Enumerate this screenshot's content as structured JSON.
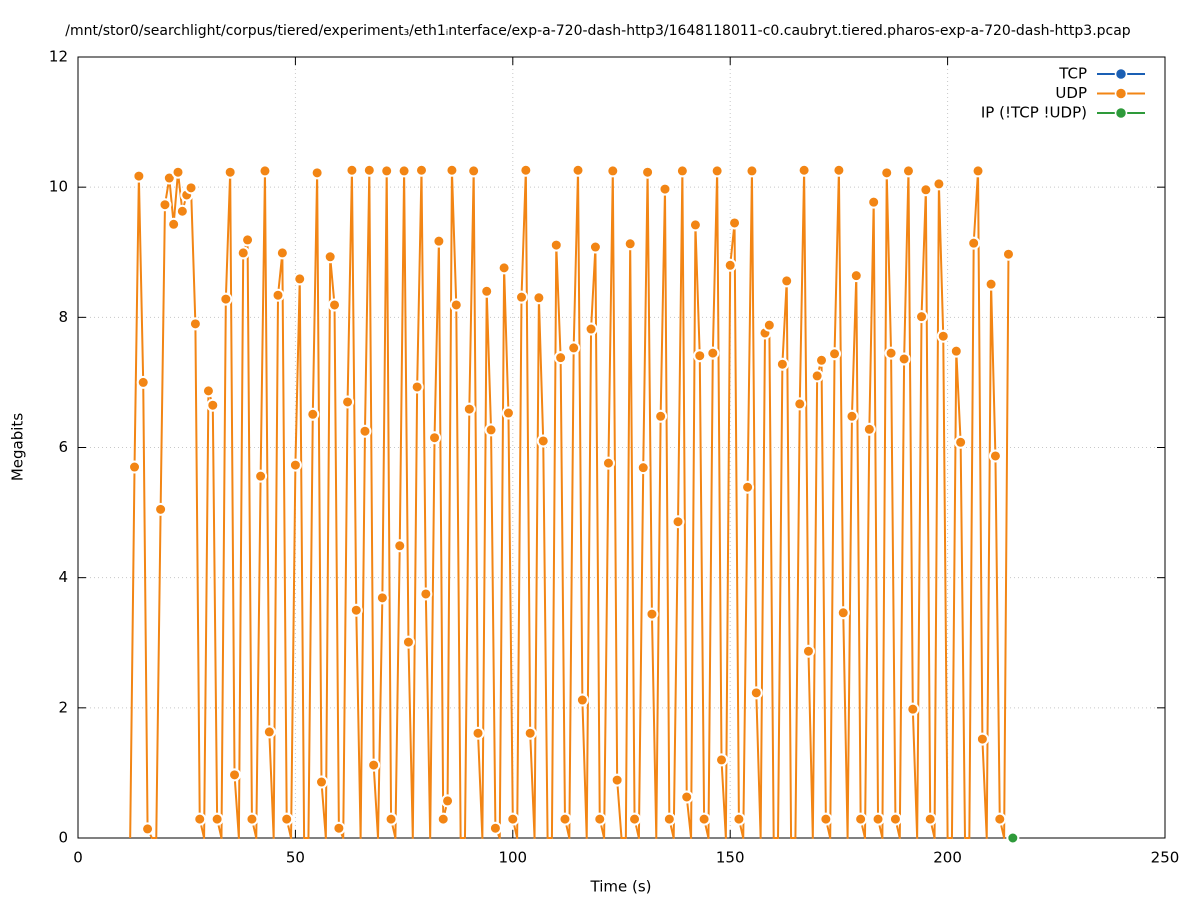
{
  "chart_data": {
    "type": "line",
    "title": "/mnt/stor0/searchlight/corpus/tiered/experiment₃/eth1ᵢnterface/exp-a-720-dash-http3/1648118011-c0.caubryt.tiered.pharos-exp-a-720-dash-http3.pcap",
    "xlabel": "Time (s)",
    "ylabel": "Megabits",
    "xlim": [
      0,
      250
    ],
    "xticks": [
      0,
      50,
      100,
      150,
      200,
      250
    ],
    "ylim": [
      0,
      12
    ],
    "yticks": [
      0,
      2,
      4,
      6,
      8,
      10,
      12
    ],
    "grid": true,
    "legend": "top-right",
    "series": [
      {
        "name": "TCP",
        "color": "#1a5fb4",
        "x": [],
        "values": []
      },
      {
        "name": "UDP",
        "color": "#f28514",
        "x": [
          12,
          13,
          14,
          15,
          16,
          17,
          18,
          19,
          20,
          21,
          22,
          23,
          24,
          25,
          26,
          27,
          28,
          29,
          30,
          31,
          32,
          33,
          34,
          35,
          36,
          37,
          38,
          39,
          40,
          41,
          42,
          43,
          44,
          45,
          46,
          47,
          48,
          49,
          50,
          51,
          52,
          53,
          54,
          55,
          56,
          57,
          58,
          59,
          60,
          61,
          62,
          63,
          64,
          65,
          66,
          67,
          68,
          69,
          70,
          71,
          72,
          73,
          74,
          75,
          76,
          77,
          78,
          79,
          80,
          81,
          82,
          83,
          84,
          85,
          86,
          87,
          88,
          89,
          90,
          91,
          92,
          93,
          94,
          95,
          96,
          97,
          98,
          99,
          100,
          101,
          102,
          103,
          104,
          105,
          106,
          107,
          108,
          109,
          110,
          111,
          112,
          113,
          114,
          115,
          116,
          117,
          118,
          119,
          120,
          121,
          122,
          123,
          124,
          125,
          126,
          127,
          128,
          129,
          130,
          131,
          132,
          133,
          134,
          135,
          136,
          137,
          138,
          139,
          140,
          141,
          142,
          143,
          144,
          145,
          146,
          147,
          148,
          149,
          150,
          151,
          152,
          153,
          154,
          155,
          156,
          157,
          158,
          159,
          160,
          161,
          162,
          163,
          164,
          165,
          166,
          167,
          168,
          169,
          170,
          171,
          172,
          173,
          174,
          175,
          176,
          177,
          178,
          179,
          180,
          181,
          182,
          183,
          184,
          185,
          186,
          187,
          188,
          189,
          190,
          191,
          192,
          193,
          194,
          195,
          196,
          197,
          198,
          199,
          200,
          201,
          202,
          203,
          204,
          205,
          206,
          207,
          208,
          209,
          210,
          211,
          212,
          213,
          214
        ],
        "values": [
          0,
          5.7,
          10.17,
          7.0,
          0.14,
          0,
          0,
          5.05,
          9.73,
          10.14,
          9.43,
          10.23,
          9.63,
          9.88,
          9.99,
          7.9,
          0.29,
          0,
          6.87,
          6.65,
          0.29,
          0,
          8.28,
          10.23,
          0.97,
          0,
          8.99,
          9.19,
          0.29,
          0,
          5.56,
          10.25,
          1.63,
          0,
          8.34,
          8.99,
          0.29,
          0,
          5.73,
          8.59,
          0,
          0,
          6.51,
          10.22,
          0.86,
          0,
          8.93,
          8.19,
          0.15,
          0,
          6.7,
          10.26,
          3.5,
          0,
          6.25,
          10.26,
          1.12,
          0,
          3.69,
          10.25,
          0.29,
          0,
          4.49,
          10.25,
          3.01,
          0,
          6.93,
          10.26,
          3.75,
          0,
          6.15,
          9.17,
          0.29,
          0.57,
          10.26,
          8.19,
          0,
          0,
          6.59,
          10.25,
          1.61,
          0,
          8.4,
          6.27,
          0.15,
          0,
          8.76,
          6.53,
          0.29,
          0,
          8.31,
          10.26,
          1.61,
          0,
          8.3,
          6.1,
          0,
          0,
          9.11,
          7.38,
          0.29,
          0,
          7.53,
          10.26,
          2.12,
          0,
          7.82,
          9.08,
          0.29,
          0,
          5.76,
          10.25,
          0.89,
          0,
          0,
          9.13,
          0.29,
          0,
          5.69,
          10.23,
          3.44,
          0,
          6.48,
          9.97,
          0.29,
          0,
          4.86,
          10.25,
          0.63,
          0,
          9.42,
          7.41,
          0.29,
          0,
          7.45,
          10.25,
          1.2,
          0,
          8.8,
          9.45,
          0.29,
          0,
          5.39,
          10.25,
          2.23,
          0,
          7.76,
          7.88,
          0,
          0,
          7.28,
          8.56,
          0,
          0,
          6.67,
          10.26,
          2.87,
          0,
          7.1,
          7.34,
          0.29,
          0,
          7.44,
          10.26,
          3.46,
          0,
          6.48,
          8.64,
          0.29,
          0,
          6.28,
          9.77,
          0.29,
          0,
          10.22,
          7.45,
          0.29,
          0,
          7.36,
          10.25,
          1.98,
          0,
          8.01,
          9.96,
          0.29,
          0,
          10.05,
          7.71,
          0,
          0,
          7.48,
          6.08,
          0,
          0,
          9.14,
          10.25,
          1.52,
          0,
          8.51,
          5.87,
          0.29,
          0,
          8.97
        ]
      },
      {
        "name": "IP (!TCP  !UDP)",
        "color": "#2e9a3a",
        "x": [
          215
        ],
        "values": [
          0
        ]
      }
    ]
  }
}
